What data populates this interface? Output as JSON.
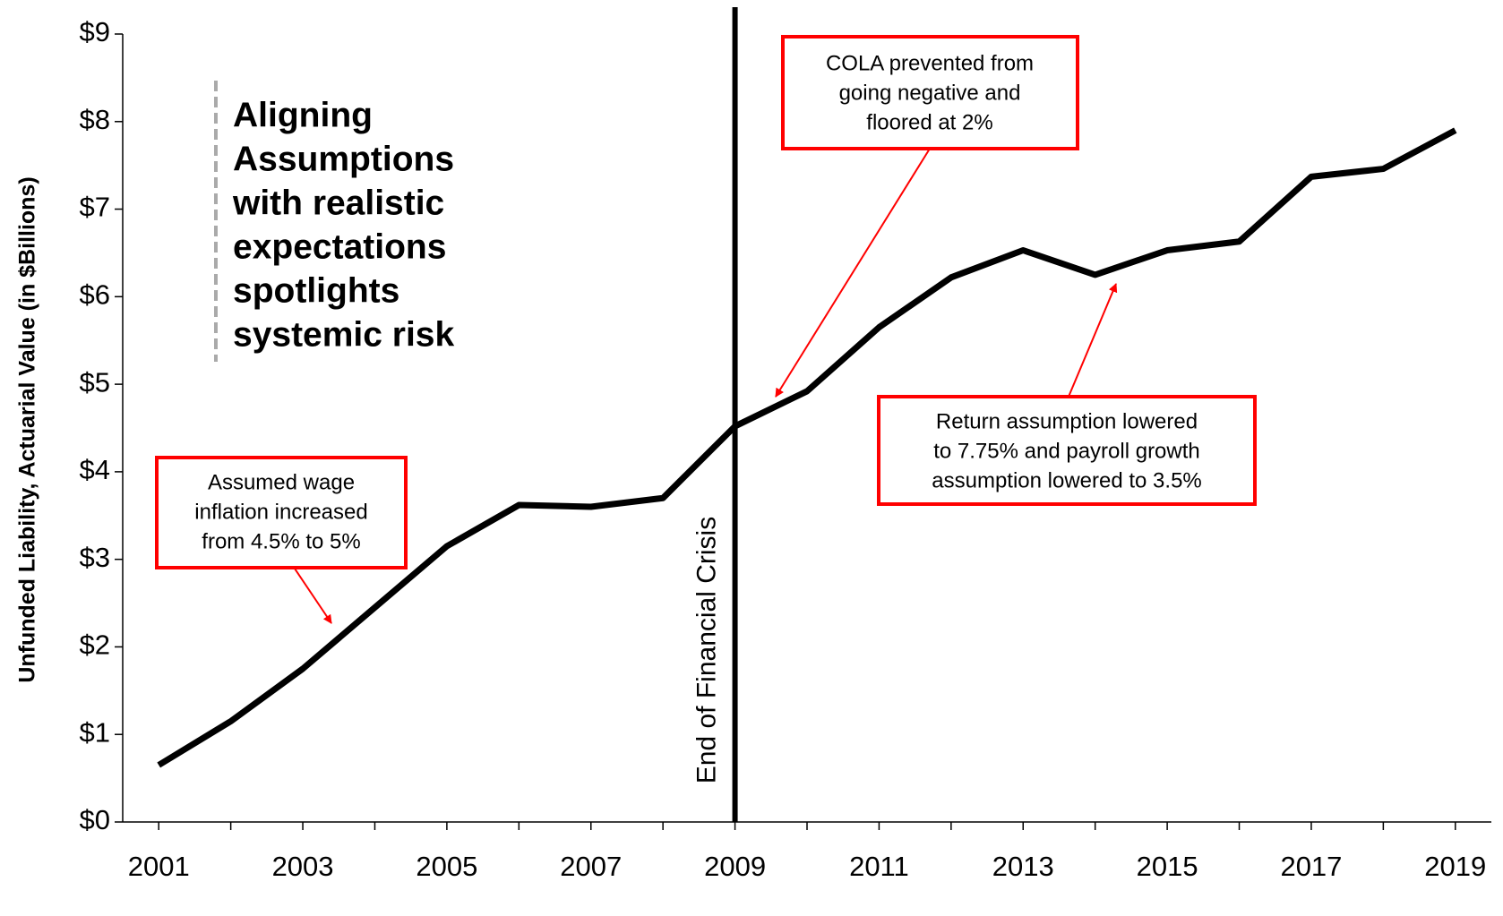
{
  "chart_data": {
    "type": "line",
    "y_label": "Unfunded Liability, Actuarial Value (in $Billions)",
    "x": [
      2001,
      2002,
      2003,
      2004,
      2005,
      2006,
      2007,
      2008,
      2009,
      2010,
      2011,
      2012,
      2013,
      2014,
      2015,
      2016,
      2017,
      2018,
      2019
    ],
    "series": [
      {
        "name": "Unfunded Liability",
        "color": "#000000",
        "values": [
          0.65,
          1.15,
          1.75,
          2.45,
          3.15,
          3.62,
          3.6,
          3.7,
          4.52,
          4.92,
          5.65,
          6.22,
          6.53,
          6.25,
          6.53,
          6.63,
          7.37,
          7.46,
          7.9
        ]
      }
    ],
    "xlim": [
      2000.5,
      2019.5
    ],
    "xticks": [
      2001,
      2003,
      2005,
      2007,
      2009,
      2011,
      2013,
      2015,
      2017,
      2019
    ],
    "xticks_minor": [
      2002,
      2004,
      2006,
      2008,
      2010,
      2012,
      2014,
      2016,
      2018
    ],
    "ylim": [
      0,
      9
    ],
    "yticks": [
      {
        "value": 0,
        "label": "$0"
      },
      {
        "value": 1,
        "label": "$1"
      },
      {
        "value": 2,
        "label": "$2"
      },
      {
        "value": 3,
        "label": "$3"
      },
      {
        "value": 4,
        "label": "$4"
      },
      {
        "value": 5,
        "label": "$5"
      },
      {
        "value": 6,
        "label": "$6"
      },
      {
        "value": 7,
        "label": "$7"
      },
      {
        "value": 8,
        "label": "$8"
      },
      {
        "value": 9,
        "label": "$9"
      }
    ],
    "vline": {
      "x": 2009,
      "label": "End of Financial Crisis"
    },
    "side_title": [
      "Aligning",
      "Assumptions",
      "with realistic",
      "expectations",
      "spotlights",
      "systemic risk"
    ],
    "annotations": [
      {
        "lines": [
          "Assumed wage",
          "inflation increased",
          "from 4.5% to 5%"
        ]
      },
      {
        "lines": [
          "COLA prevented from",
          "going negative and",
          "floored at 2%"
        ]
      },
      {
        "lines": [
          "Return assumption lowered",
          "to 7.75% and payroll growth",
          "assumption lowered to 3.5%"
        ]
      }
    ]
  }
}
